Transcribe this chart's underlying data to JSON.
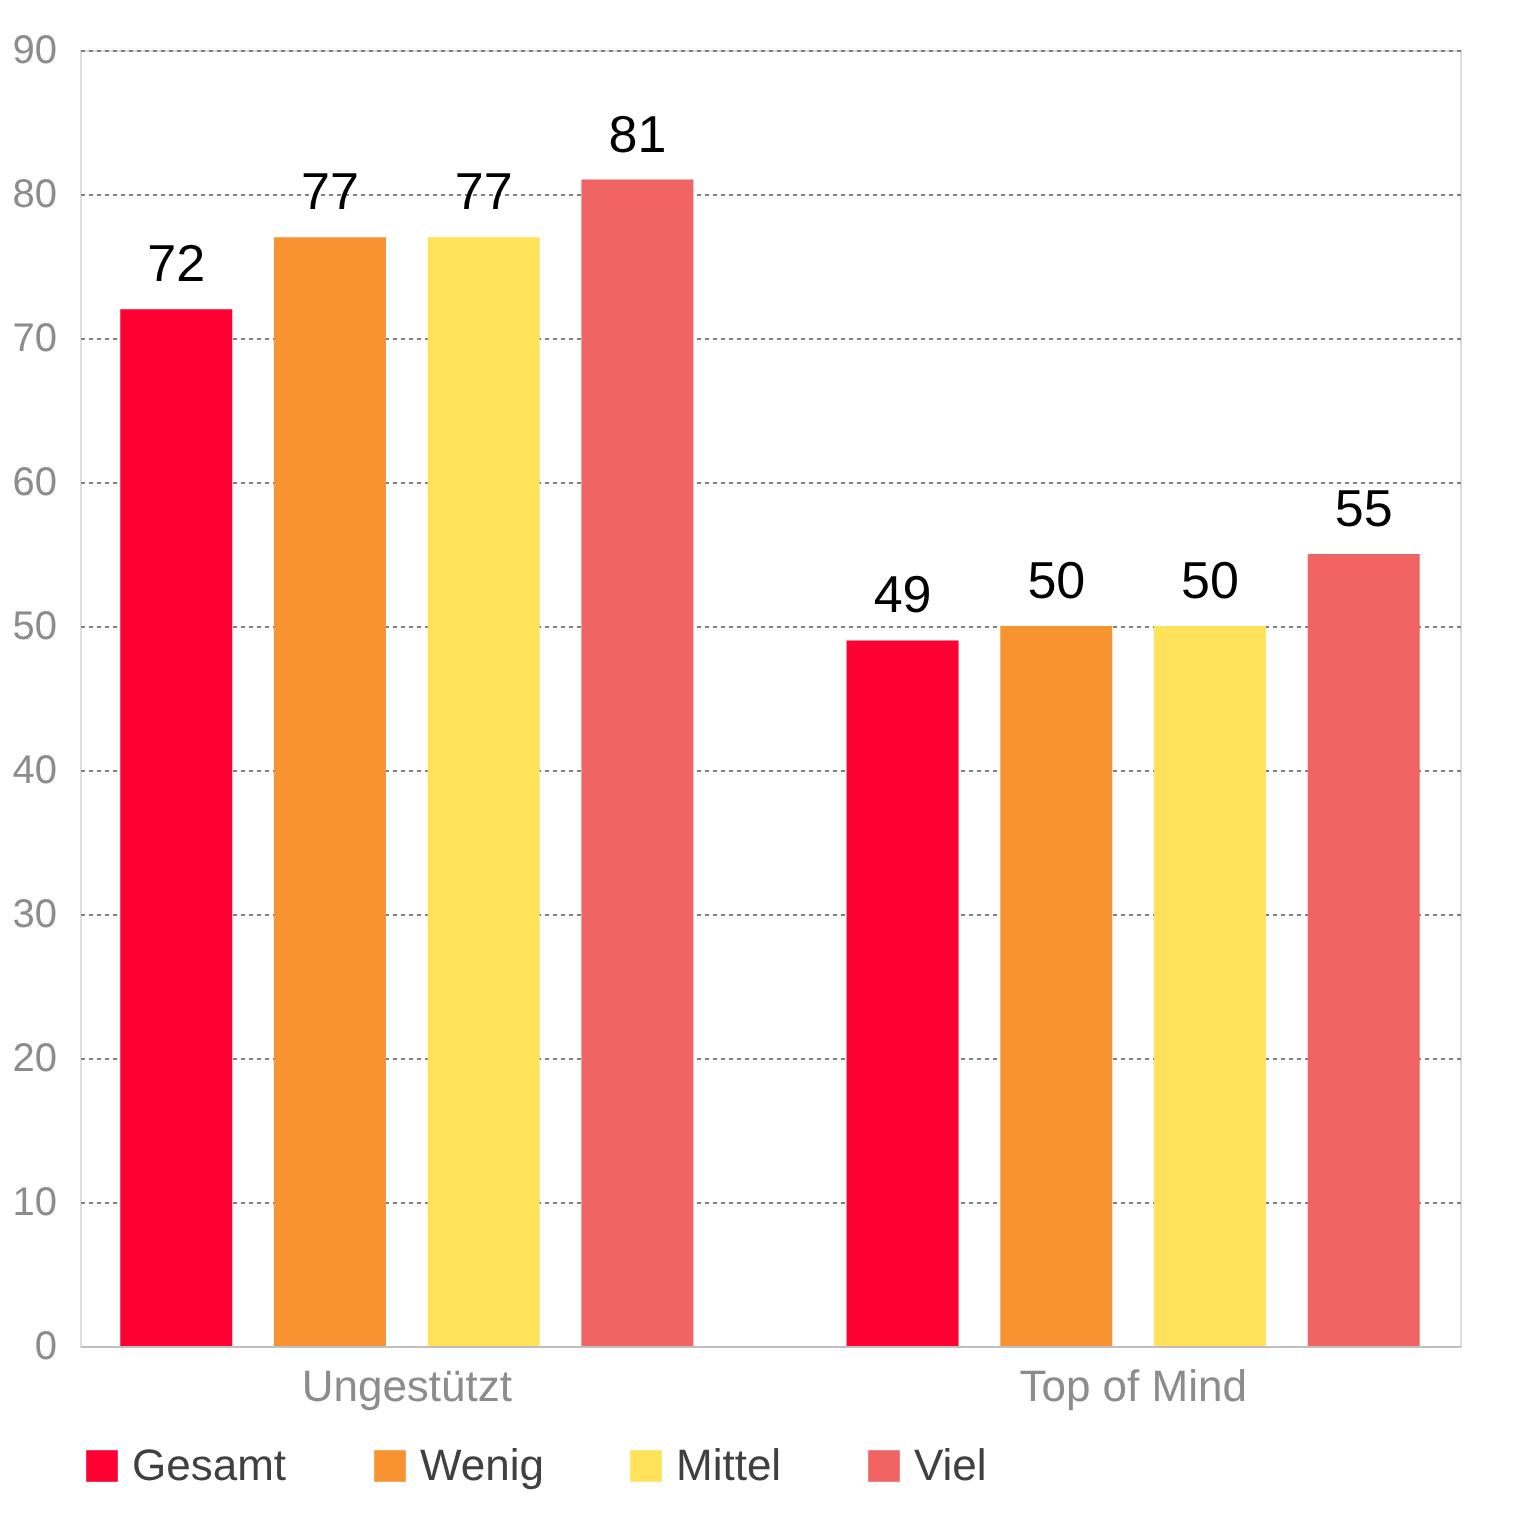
{
  "chart_data": {
    "type": "bar",
    "categories": [
      "Ungestützt",
      "Top of Mind"
    ],
    "series": [
      {
        "name": "Gesamt",
        "color": "#ff0033",
        "values": [
          72,
          49
        ]
      },
      {
        "name": "Wenig",
        "color": "#f79431",
        "values": [
          77,
          50
        ]
      },
      {
        "name": "Mittel",
        "color": "#ffe15a",
        "values": [
          77,
          50
        ]
      },
      {
        "name": "Viel",
        "color": "#f06464",
        "values": [
          81,
          55
        ]
      }
    ],
    "ylim": [
      0,
      90
    ],
    "yticks": [
      0,
      10,
      20,
      30,
      40,
      50,
      60,
      70,
      80,
      90
    ],
    "grid": "y",
    "legend": "bottom",
    "data_labels": true
  }
}
